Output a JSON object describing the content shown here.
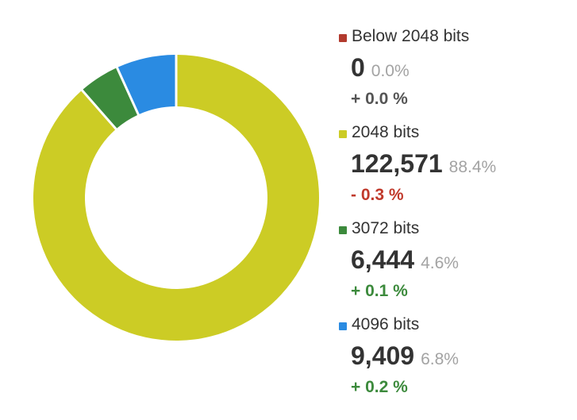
{
  "chart_data": {
    "type": "pie",
    "categories": [
      "Below 2048 bits",
      "2048 bits",
      "3072 bits",
      "4096 bits"
    ],
    "values": [
      0,
      122571,
      6444,
      9409
    ],
    "value_labels": [
      "0",
      "122,571",
      "6,444",
      "9,409"
    ],
    "shares": [
      "0.0%",
      "88.4%",
      "4.6%",
      "6.8%"
    ],
    "changes": [
      "+ 0.0 %",
      "- 0.3 %",
      "+ 0.1 %",
      "+ 0.2 %"
    ],
    "colors": [
      "#b23a2e",
      "#cccc25",
      "#3c8a3c",
      "#2a8be2"
    ],
    "change_colors": [
      "#555555",
      "#c0392b",
      "#3c8a3c",
      "#3c8a3c"
    ],
    "legend_position": "right",
    "donut": true
  }
}
